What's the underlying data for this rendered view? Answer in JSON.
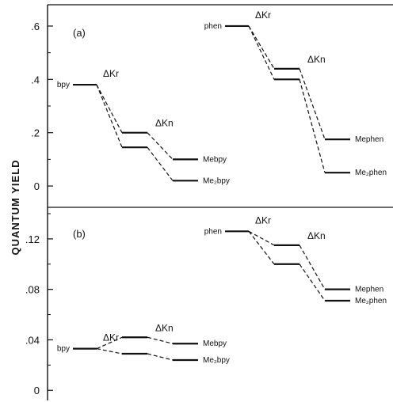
{
  "chart_data": [
    {
      "type": "line",
      "panel_label": "(a)",
      "ylabel": "QUANTUM YIELD",
      "ylim": [
        -0.08,
        0.68
      ],
      "ytick_values": [
        0,
        0.2,
        0.4,
        0.6
      ],
      "ytick_labels": [
        "0",
        ".2",
        ".4",
        ".6"
      ],
      "groups": [
        {
          "name": "bpy-series",
          "start": {
            "label": "bpy",
            "value": 0.38
          },
          "kr_label": "ΔKr",
          "kn_label": "ΔKn",
          "series": [
            {
              "label": "Mebpy",
              "values": [
                0.38,
                0.38,
                0.2,
                0.1
              ]
            },
            {
              "label": "Me₂bpy",
              "values": [
                0.38,
                0.38,
                0.145,
                0.02
              ]
            }
          ]
        },
        {
          "name": "phen-series",
          "start": {
            "label": "phen",
            "value": 0.6
          },
          "kr_label": "ΔKr",
          "kn_label": "ΔKn",
          "series": [
            {
              "label": "Mephen",
              "values": [
                0.6,
                0.6,
                0.44,
                0.175
              ]
            },
            {
              "label": "Me₂phen",
              "values": [
                0.6,
                0.6,
                0.4,
                0.05
              ]
            }
          ]
        }
      ]
    },
    {
      "type": "line",
      "panel_label": "(b)",
      "ylabel": "",
      "ylim": [
        -0.008,
        0.145
      ],
      "ytick_values": [
        0,
        0.04,
        0.08,
        0.12
      ],
      "ytick_labels": [
        "0",
        ".04",
        ".08",
        ".12"
      ],
      "groups": [
        {
          "name": "bpy-series",
          "start": {
            "label": "bpy",
            "value": 0.033
          },
          "kr_label": "ΔKr",
          "kn_label": "ΔKn",
          "series": [
            {
              "label": "Mebpy",
              "values": [
                0.033,
                0.033,
                0.042,
                0.037
              ]
            },
            {
              "label": "Me₂bpy",
              "values": [
                0.033,
                0.033,
                0.029,
                0.024
              ]
            }
          ]
        },
        {
          "name": "phen-series",
          "start": {
            "label": "phen",
            "value": 0.126
          },
          "kr_label": "ΔKr",
          "kn_label": "ΔKn",
          "series": [
            {
              "label": "Mephen",
              "values": [
                0.126,
                0.126,
                0.115,
                0.08
              ]
            },
            {
              "label": "Me₂phen",
              "values": [
                0.126,
                0.126,
                0.1,
                0.071
              ]
            }
          ]
        }
      ]
    }
  ]
}
